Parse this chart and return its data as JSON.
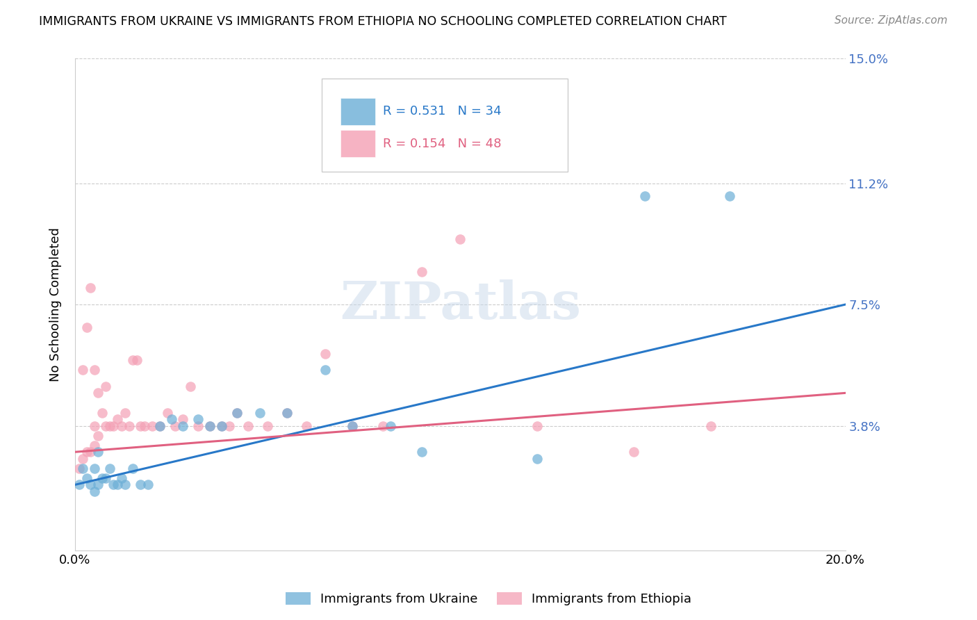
{
  "title": "IMMIGRANTS FROM UKRAINE VS IMMIGRANTS FROM ETHIOPIA NO SCHOOLING COMPLETED CORRELATION CHART",
  "source": "Source: ZipAtlas.com",
  "ylabel": "No Schooling Completed",
  "xlim": [
    0.0,
    0.2
  ],
  "ylim": [
    0.0,
    0.15
  ],
  "yticks": [
    0.038,
    0.075,
    0.112,
    0.15
  ],
  "ytick_labels": [
    "3.8%",
    "7.5%",
    "11.2%",
    "15.0%"
  ],
  "xticks": [
    0.0,
    0.04,
    0.08,
    0.12,
    0.16,
    0.2
  ],
  "xtick_labels": [
    "0.0%",
    "",
    "",
    "",
    "",
    "20.0%"
  ],
  "ukraine_R": 0.531,
  "ukraine_N": 34,
  "ethiopia_R": 0.154,
  "ethiopia_N": 48,
  "ukraine_color": "#6baed6",
  "ethiopia_color": "#f4a0b5",
  "ukraine_line_color": "#2878c8",
  "ethiopia_line_color": "#e06080",
  "watermark_text": "ZIPatlas",
  "ukraine_x": [
    0.001,
    0.002,
    0.003,
    0.004,
    0.005,
    0.005,
    0.006,
    0.006,
    0.007,
    0.008,
    0.009,
    0.01,
    0.011,
    0.012,
    0.013,
    0.015,
    0.017,
    0.019,
    0.022,
    0.025,
    0.028,
    0.032,
    0.035,
    0.038,
    0.042,
    0.048,
    0.055,
    0.065,
    0.072,
    0.082,
    0.09,
    0.12,
    0.148,
    0.17
  ],
  "ukraine_y": [
    0.02,
    0.025,
    0.022,
    0.02,
    0.018,
    0.025,
    0.02,
    0.03,
    0.022,
    0.022,
    0.025,
    0.02,
    0.02,
    0.022,
    0.02,
    0.025,
    0.02,
    0.02,
    0.038,
    0.04,
    0.038,
    0.04,
    0.038,
    0.038,
    0.042,
    0.042,
    0.042,
    0.055,
    0.038,
    0.038,
    0.03,
    0.028,
    0.108,
    0.108
  ],
  "ethiopia_x": [
    0.001,
    0.002,
    0.003,
    0.004,
    0.005,
    0.005,
    0.006,
    0.006,
    0.007,
    0.008,
    0.008,
    0.009,
    0.01,
    0.011,
    0.012,
    0.013,
    0.014,
    0.015,
    0.016,
    0.017,
    0.018,
    0.02,
    0.022,
    0.024,
    0.026,
    0.028,
    0.03,
    0.032,
    0.035,
    0.038,
    0.04,
    0.042,
    0.045,
    0.05,
    0.055,
    0.06,
    0.065,
    0.072,
    0.08,
    0.09,
    0.1,
    0.12,
    0.145,
    0.165,
    0.002,
    0.003,
    0.004,
    0.005
  ],
  "ethiopia_y": [
    0.025,
    0.028,
    0.03,
    0.03,
    0.032,
    0.038,
    0.035,
    0.048,
    0.042,
    0.038,
    0.05,
    0.038,
    0.038,
    0.04,
    0.038,
    0.042,
    0.038,
    0.058,
    0.058,
    0.038,
    0.038,
    0.038,
    0.038,
    0.042,
    0.038,
    0.04,
    0.05,
    0.038,
    0.038,
    0.038,
    0.038,
    0.042,
    0.038,
    0.038,
    0.042,
    0.038,
    0.06,
    0.038,
    0.038,
    0.085,
    0.095,
    0.038,
    0.03,
    0.038,
    0.055,
    0.068,
    0.08,
    0.055
  ],
  "ukraine_line_x0": 0.0,
  "ukraine_line_y0": 0.02,
  "ukraine_line_x1": 0.2,
  "ukraine_line_y1": 0.075,
  "ethiopia_line_x0": 0.0,
  "ethiopia_line_y0": 0.03,
  "ethiopia_line_x1": 0.2,
  "ethiopia_line_y1": 0.048
}
